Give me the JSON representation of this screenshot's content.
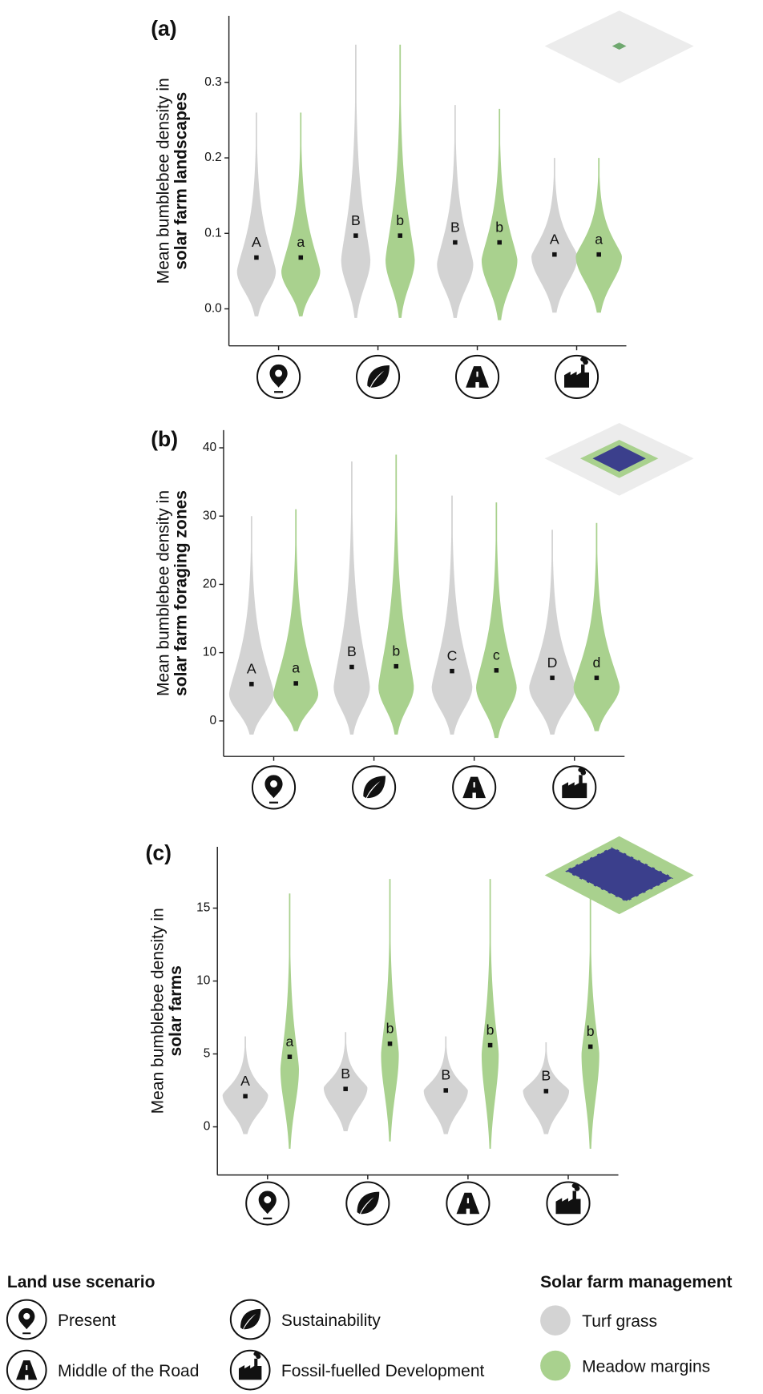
{
  "chart_data": [
    {
      "type": "violin",
      "panel_label": "(a)",
      "y_label": "Mean bumblebee density in",
      "y_label_bold": "solar farm landscapes",
      "categories": [
        "Present",
        "Sustainability",
        "Middle of the Road",
        "Fossil-fuelled Development"
      ],
      "ylim": [
        -0.049,
        0.388
      ],
      "yticks": [
        {
          "value": 0,
          "label": "0.0"
        },
        0.1,
        0.2,
        0.3
      ],
      "series": [
        {
          "name": "Turf grass",
          "color": "#d3d3d3",
          "values": [
            0.068,
            0.097,
            0.088,
            0.072
          ],
          "letters": [
            "A",
            "B",
            "B",
            "A"
          ],
          "mins": [
            -0.01,
            -0.012,
            -0.012,
            -0.005
          ],
          "modes": [
            0.05,
            0.065,
            0.06,
            0.07
          ],
          "maxs": [
            0.26,
            0.35,
            0.27,
            0.2
          ]
        },
        {
          "name": "Meadow margins",
          "color": "#a9d18e",
          "values": [
            0.068,
            0.097,
            0.088,
            0.072
          ],
          "letters": [
            "a",
            "b",
            "b",
            "a"
          ],
          "mins": [
            -0.01,
            -0.012,
            -0.015,
            -0.005
          ],
          "modes": [
            0.05,
            0.065,
            0.065,
            0.07
          ],
          "maxs": [
            0.26,
            0.35,
            0.265,
            0.2
          ]
        }
      ]
    },
    {
      "type": "violin",
      "panel_label": "(b)",
      "y_label": "Mean bumblebee density in",
      "y_label_bold": "solar farm foraging zones",
      "categories": [
        "Present",
        "Sustainability",
        "Middle of the Road",
        "Fossil-fuelled Development"
      ],
      "ylim": [
        -5.2,
        42.6
      ],
      "yticks": [
        0,
        10,
        20,
        30,
        40
      ],
      "series": [
        {
          "name": "Turf grass",
          "color": "#d3d3d3",
          "values": [
            5.4,
            7.9,
            7.3,
            6.3
          ],
          "letters": [
            "A",
            "B",
            "C",
            "D"
          ],
          "mins": [
            -2,
            -2,
            -2,
            -2
          ],
          "modes": [
            4,
            5,
            5,
            5
          ],
          "maxs": [
            30,
            38,
            33,
            28
          ]
        },
        {
          "name": "Meadow margins",
          "color": "#a9d18e",
          "values": [
            5.5,
            8.0,
            7.4,
            6.3
          ],
          "letters": [
            "a",
            "b",
            "c",
            "d"
          ],
          "mins": [
            -1.5,
            -2,
            -2.5,
            -1.5
          ],
          "modes": [
            4,
            5,
            5,
            5
          ],
          "maxs": [
            31,
            39,
            32,
            29
          ]
        }
      ]
    },
    {
      "type": "violin",
      "panel_label": "(c)",
      "y_label": "Mean bumblebee density in",
      "y_label_bold": "solar farms",
      "categories": [
        "Present",
        "Sustainability",
        "Middle of the Road",
        "Fossil-fuelled Development"
      ],
      "ylim": [
        -3.3,
        19.2
      ],
      "yticks": [
        0,
        5,
        10,
        15
      ],
      "series": [
        {
          "name": "Turf grass",
          "color": "#d3d3d3",
          "values": [
            2.1,
            2.6,
            2.5,
            2.45
          ],
          "letters": [
            "A",
            "B",
            "B",
            "B"
          ],
          "mins": [
            -0.5,
            -0.3,
            -0.5,
            -0.5
          ],
          "modes": [
            2.2,
            2.7,
            2.5,
            2.5
          ],
          "maxs": [
            6.2,
            6.5,
            6.2,
            5.8
          ]
        },
        {
          "name": "Meadow margins",
          "color": "#a9d18e",
          "values": [
            4.8,
            5.7,
            5.6,
            5.5
          ],
          "letters": [
            "a",
            "b",
            "b",
            "b"
          ],
          "mins": [
            -1.5,
            -1,
            -1.5,
            -1.5
          ],
          "modes": [
            4,
            5,
            5,
            5
          ],
          "maxs": [
            16,
            17,
            17,
            16
          ]
        }
      ]
    }
  ],
  "legend": {
    "scenario_title": "Land use scenario",
    "management_title": "Solar farm management"
  }
}
